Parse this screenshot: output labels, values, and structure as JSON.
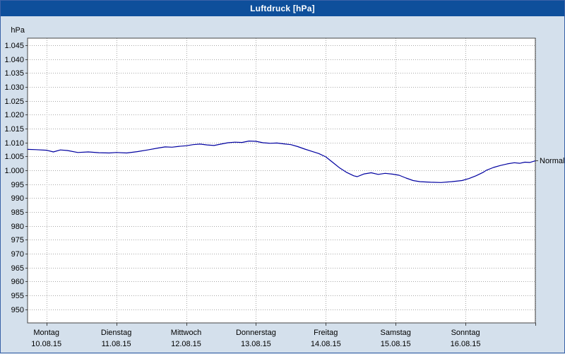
{
  "window": {
    "title": "Luftdruck [hPa]"
  },
  "colors": {
    "titlebar_bg": "#0e4f9b",
    "titlebar_text": "#ffffff",
    "page_bg": "#d4e0ec",
    "plot_bg": "#ffffff",
    "grid": "#a8a8a8",
    "plot_border": "#444444",
    "line": "#0000a0",
    "text": "#000000"
  },
  "chart_data": {
    "type": "line",
    "title": "Luftdruck [hPa]",
    "unit_label": "hPa",
    "legend_position": "none",
    "grid": "dotted",
    "y_range": [
      945.1,
      1047.5
    ],
    "x_domain_days": [
      -0.27,
      7
    ],
    "y_ticks": [
      {
        "value": 1045,
        "label": "1.045"
      },
      {
        "value": 1040,
        "label": "1.040"
      },
      {
        "value": 1035,
        "label": "1.035"
      },
      {
        "value": 1030,
        "label": "1.030"
      },
      {
        "value": 1025,
        "label": "1.025"
      },
      {
        "value": 1020,
        "label": "1.020"
      },
      {
        "value": 1015,
        "label": "1.015"
      },
      {
        "value": 1010,
        "label": "1.010"
      },
      {
        "value": 1005,
        "label": "1.005"
      },
      {
        "value": 1000,
        "label": "1.000"
      },
      {
        "value": 995,
        "label": "995"
      },
      {
        "value": 990,
        "label": "990"
      },
      {
        "value": 985,
        "label": "985"
      },
      {
        "value": 980,
        "label": "980"
      },
      {
        "value": 975,
        "label": "975"
      },
      {
        "value": 970,
        "label": "970"
      },
      {
        "value": 965,
        "label": "965"
      },
      {
        "value": 960,
        "label": "960"
      },
      {
        "value": 955,
        "label": "955"
      },
      {
        "value": 950,
        "label": "950"
      }
    ],
    "x_days": [
      {
        "name": "Montag",
        "date": "10.08.15"
      },
      {
        "name": "Dienstag",
        "date": "11.08.15"
      },
      {
        "name": "Mittwoch",
        "date": "12.08.15"
      },
      {
        "name": "Donnerstag",
        "date": "13.08.15"
      },
      {
        "name": "Freitag",
        "date": "14.08.15"
      },
      {
        "name": "Samstag",
        "date": "15.08.15"
      },
      {
        "name": "Sonntag",
        "date": "16.08.15"
      }
    ],
    "annotation": {
      "label": "Normal",
      "value": 1003.5
    },
    "series": [
      {
        "name": "Luftdruck",
        "color": "#0000a0",
        "points": [
          [
            -0.27,
            1007.5
          ],
          [
            -0.15,
            1007.4
          ],
          [
            0,
            1007.2
          ],
          [
            0.1,
            1006.6
          ],
          [
            0.2,
            1007.3
          ],
          [
            0.3,
            1007.1
          ],
          [
            0.45,
            1006.4
          ],
          [
            0.6,
            1006.6
          ],
          [
            0.75,
            1006.3
          ],
          [
            0.9,
            1006.2
          ],
          [
            1,
            1006.4
          ],
          [
            1.15,
            1006.2
          ],
          [
            1.3,
            1006.7
          ],
          [
            1.45,
            1007.3
          ],
          [
            1.6,
            1008
          ],
          [
            1.7,
            1008.4
          ],
          [
            1.8,
            1008.3
          ],
          [
            1.9,
            1008.6
          ],
          [
            2,
            1008.8
          ],
          [
            2.1,
            1009.2
          ],
          [
            2.2,
            1009.4
          ],
          [
            2.3,
            1009.1
          ],
          [
            2.4,
            1008.9
          ],
          [
            2.5,
            1009.4
          ],
          [
            2.6,
            1009.9
          ],
          [
            2.7,
            1010.1
          ],
          [
            2.8,
            1010
          ],
          [
            2.9,
            1010.5
          ],
          [
            3,
            1010.4
          ],
          [
            3.1,
            1009.9
          ],
          [
            3.2,
            1009.7
          ],
          [
            3.3,
            1009.8
          ],
          [
            3.4,
            1009.5
          ],
          [
            3.5,
            1009.2
          ],
          [
            3.6,
            1008.5
          ],
          [
            3.7,
            1007.6
          ],
          [
            3.8,
            1006.8
          ],
          [
            3.9,
            1006
          ],
          [
            4,
            1004.8
          ],
          [
            4.1,
            1002.8
          ],
          [
            4.2,
            1000.8
          ],
          [
            4.3,
            999.2
          ],
          [
            4.4,
            998
          ],
          [
            4.45,
            997.7
          ],
          [
            4.55,
            998.7
          ],
          [
            4.65,
            999.1
          ],
          [
            4.75,
            998.5
          ],
          [
            4.85,
            998.9
          ],
          [
            4.95,
            998.6
          ],
          [
            5.05,
            998.2
          ],
          [
            5.15,
            997.2
          ],
          [
            5.25,
            996.3
          ],
          [
            5.35,
            995.9
          ],
          [
            5.5,
            995.7
          ],
          [
            5.65,
            995.6
          ],
          [
            5.8,
            995.9
          ],
          [
            5.95,
            996.3
          ],
          [
            6.05,
            997
          ],
          [
            6.15,
            998
          ],
          [
            6.25,
            999.2
          ],
          [
            6.3,
            1000
          ],
          [
            6.4,
            1001
          ],
          [
            6.5,
            1001.7
          ],
          [
            6.6,
            1002.3
          ],
          [
            6.7,
            1002.7
          ],
          [
            6.78,
            1002.5
          ],
          [
            6.85,
            1002.9
          ],
          [
            6.92,
            1002.8
          ],
          [
            7,
            1003.4
          ]
        ]
      }
    ]
  }
}
